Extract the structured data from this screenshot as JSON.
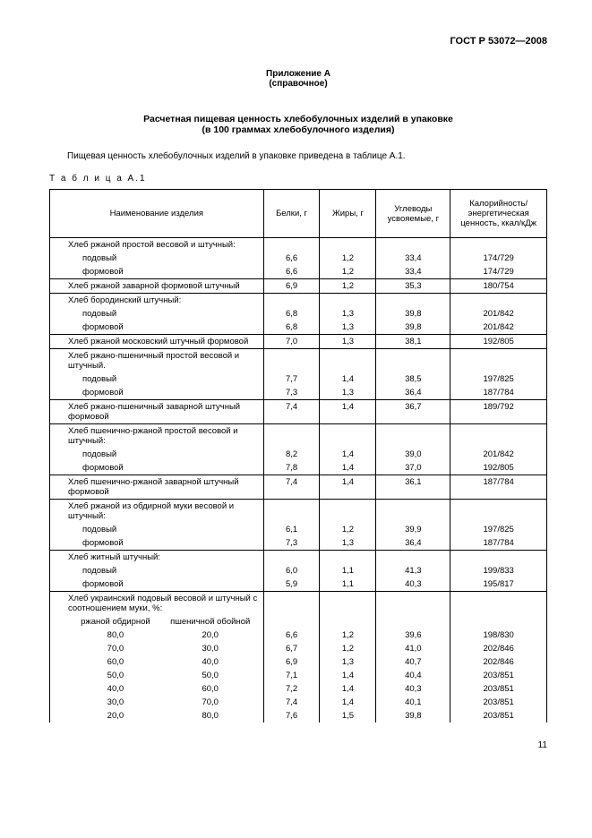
{
  "doc_id": "ГОСТ Р 53072—2008",
  "appendix": "Приложение А",
  "appendix_sub": "(справочное)",
  "title": "Расчетная пищевая ценность хлебобулочных изделий в упаковке",
  "subtitle": "(в 100 граммах хлебобулочного изделия)",
  "intro": "Пищевая ценность хлебобулочных изделий в упаковке приведена в таблице А.1.",
  "table_label": "Т а б л и ц а  А.1",
  "headers": {
    "name": "Наименование изделия",
    "protein": "Белки, г",
    "fat": "Жиры, г",
    "carbs": "Углеводы усвояемые, г",
    "energy": "Калорийность/ энергетическая ценность, ккал/кДж"
  },
  "groups": [
    {
      "label": "Хлеб ржаной простой весовой и штучный:",
      "rows": [
        {
          "n": "подовый",
          "p": "6,6",
          "f": "1,2",
          "c": "33,4",
          "e": "174/729"
        },
        {
          "n": "формовой",
          "p": "6,6",
          "f": "1,2",
          "c": "33,4",
          "e": "174/729"
        }
      ]
    },
    {
      "label": "Хлеб ржаной заварной формовой штучный",
      "single": {
        "p": "6,9",
        "f": "1,2",
        "c": "35,3",
        "e": "180/754"
      }
    },
    {
      "label": "Хлеб бородинский штучный:",
      "rows": [
        {
          "n": "подовый",
          "p": "6,8",
          "f": "1,3",
          "c": "39,8",
          "e": "201/842"
        },
        {
          "n": "формовой",
          "p": "6,8",
          "f": "1,3",
          "c": "39,8",
          "e": "201/842"
        }
      ]
    },
    {
      "label": "Хлеб ржаной московский штучный формовой",
      "single": {
        "p": "7,0",
        "f": "1,3",
        "c": "38,1",
        "e": "192/805"
      }
    },
    {
      "label": "Хлеб ржано-пшеничный простой весовой и штучный.",
      "rows": [
        {
          "n": "подовый",
          "p": "7,7",
          "f": "1,4",
          "c": "38,5",
          "e": "197/825"
        },
        {
          "n": "формовой",
          "p": "7,3",
          "f": "1,3",
          "c": "36,4",
          "e": "187/784"
        }
      ]
    },
    {
      "label": "Хлеб ржано-пшеничный заварной штучный формовой",
      "single": {
        "p": "7,4",
        "f": "1,4",
        "c": "36,7",
        "e": "189/792"
      }
    },
    {
      "label": "Хлеб пшенично-ржаной простой весовой и штучный:",
      "rows": [
        {
          "n": "подовый",
          "p": "8,2",
          "f": "1,4",
          "c": "39,0",
          "e": "201/842"
        },
        {
          "n": "формовой",
          "p": "7,8",
          "f": "1,4",
          "c": "37,0",
          "e": "192/805"
        }
      ]
    },
    {
      "label": "Хлеб пшенично-ржаной заварной штучный формовой",
      "single": {
        "p": "7,4",
        "f": "1,4",
        "c": "36,1",
        "e": "187/784"
      }
    },
    {
      "label": "Хлеб ржаной из обдирной муки весовой и штучный:",
      "rows": [
        {
          "n": "подовый",
          "p": "6,1",
          "f": "1,2",
          "c": "39,9",
          "e": "197/825"
        },
        {
          "n": "формовой",
          "p": "7,3",
          "f": "1,3",
          "c": "36,4",
          "e": "187/784"
        }
      ]
    },
    {
      "label": "Хлеб житный штучный:",
      "rows": [
        {
          "n": "подовый",
          "p": "6,0",
          "f": "1,1",
          "c": "41,3",
          "e": "199/833"
        },
        {
          "n": "формовой",
          "p": "5,9",
          "f": "1,1",
          "c": "40,3",
          "e": "195/817"
        }
      ]
    }
  ],
  "ukr": {
    "label": "Хлеб украинский подовый весовой и штучный с соотношением муки, %:",
    "col1_label": "ржаной обдирной",
    "col2_label": "пшеничной обойной",
    "rows": [
      {
        "a": "80,0",
        "b": "20,0",
        "p": "6,6",
        "f": "1,2",
        "c": "39,6",
        "e": "198/830"
      },
      {
        "a": "70,0",
        "b": "30,0",
        "p": "6,7",
        "f": "1,2",
        "c": "41,0",
        "e": "202/846"
      },
      {
        "a": "60,0",
        "b": "40,0",
        "p": "6,9",
        "f": "1,3",
        "c": "40,7",
        "e": "202/846"
      },
      {
        "a": "50,0",
        "b": "50,0",
        "p": "7,1",
        "f": "1,4",
        "c": "40,4",
        "e": "203/851"
      },
      {
        "a": "40,0",
        "b": "60,0",
        "p": "7,2",
        "f": "1,4",
        "c": "40,3",
        "e": "203/851"
      },
      {
        "a": "30,0",
        "b": "70,0",
        "p": "7,4",
        "f": "1,4",
        "c": "40,1",
        "e": "203/851"
      },
      {
        "a": "20,0",
        "b": "80,0",
        "p": "7,6",
        "f": "1,5",
        "c": "39,8",
        "e": "203/851"
      }
    ]
  },
  "page": "11"
}
